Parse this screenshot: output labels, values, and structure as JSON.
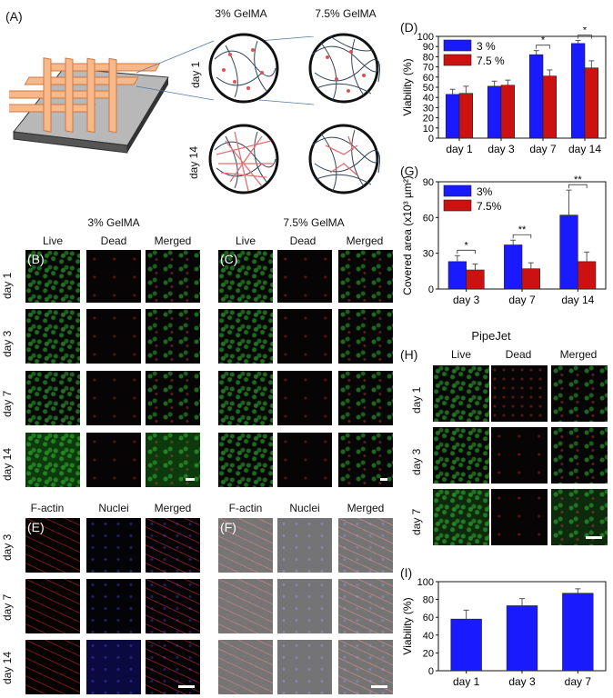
{
  "panels": {
    "A": "(A)",
    "B": "(B)",
    "C": "(C)",
    "D": "(D)",
    "E": "(E)",
    "F": "(F)",
    "G": "(G)",
    "H": "(H)",
    "I": "(I)"
  },
  "schematic": {
    "col_3": "3% GelMA",
    "col_75": "7.5% GelMA",
    "row_day1": "day 1",
    "row_day14": "day 14"
  },
  "live_dead": {
    "group_3": "3% GelMA",
    "group_75": "7.5% GelMA",
    "col_live": "Live",
    "col_dead": "Dead",
    "col_merged": "Merged",
    "rows": [
      "day 1",
      "day 3",
      "day 7",
      "day 14"
    ]
  },
  "actin": {
    "col_factin": "F-actin",
    "col_nuclei": "Nuclei",
    "col_merged": "Merged",
    "rows": [
      "day 3",
      "day 7",
      "day 14"
    ]
  },
  "pipejet": {
    "title": "PipeJet",
    "col_live": "Live",
    "col_dead": "Dead",
    "col_merged": "Merged",
    "rows": [
      "day 1",
      "day 3",
      "day 7"
    ]
  },
  "colors": {
    "blue": "#1a1aff",
    "red": "#cc1111"
  },
  "chart_data": [
    {
      "id": "D",
      "type": "bar",
      "ylabel": "Viability (%)",
      "categories": [
        "day 1",
        "day 3",
        "day 7",
        "day 14"
      ],
      "ylim": [
        0,
        100
      ],
      "yticks": [
        0,
        10,
        20,
        30,
        40,
        50,
        60,
        70,
        80,
        90,
        100
      ],
      "series": [
        {
          "name": "3 %",
          "color": "#1a1aff",
          "values": [
            43,
            51,
            82,
            93
          ],
          "errors": [
            5,
            5,
            4,
            3
          ]
        },
        {
          "name": "7.5 %",
          "color": "#cc1111",
          "values": [
            44,
            52,
            61,
            69
          ],
          "errors": [
            7,
            5,
            6,
            7
          ]
        }
      ],
      "significance": [
        {
          "category": 2,
          "label": "*"
        },
        {
          "category": 3,
          "label": "*"
        }
      ],
      "legend": "top-left"
    },
    {
      "id": "G",
      "type": "bar",
      "ylabel": "Covered area (x10³ µm²)",
      "categories": [
        "day 3",
        "day 7",
        "day 14"
      ],
      "ylim": [
        0,
        90
      ],
      "yticks": [
        0,
        30,
        60,
        90
      ],
      "series": [
        {
          "name": "3%",
          "color": "#1a1aff",
          "values": [
            23,
            37,
            62
          ],
          "errors": [
            5,
            4,
            21
          ]
        },
        {
          "name": "7.5%",
          "color": "#cc1111",
          "values": [
            16,
            17,
            23
          ],
          "errors": [
            5,
            5,
            8
          ]
        }
      ],
      "significance": [
        {
          "category": 0,
          "label": "*"
        },
        {
          "category": 1,
          "label": "**"
        },
        {
          "category": 2,
          "label": "**"
        }
      ],
      "legend": "top-left"
    },
    {
      "id": "I",
      "type": "bar",
      "ylabel": "Viability (%)",
      "categories": [
        "day 1",
        "day 3",
        "day 7"
      ],
      "ylim": [
        0,
        100
      ],
      "yticks": [
        0,
        20,
        40,
        60,
        80,
        100
      ],
      "series": [
        {
          "name": "",
          "color": "#1a1aff",
          "values": [
            58,
            73,
            87
          ],
          "errors": [
            10,
            8,
            5
          ]
        }
      ]
    }
  ]
}
